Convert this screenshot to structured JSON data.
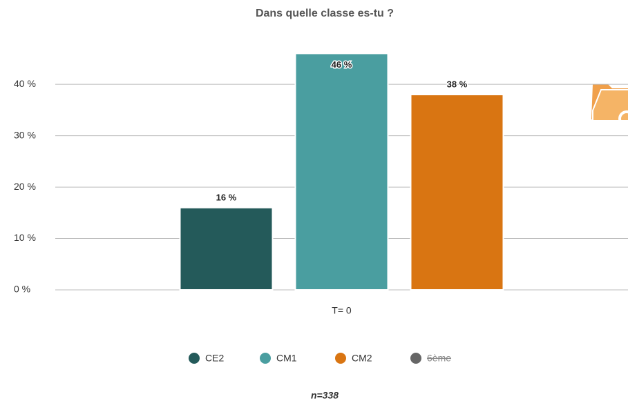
{
  "chart_data": {
    "type": "bar",
    "title": "Dans quelle classe es-tu ?",
    "categories": [
      "T= 0"
    ],
    "series": [
      {
        "name": "CE2",
        "color": "#245a5a",
        "values": [
          16
        ],
        "value_labels": [
          "16 %"
        ]
      },
      {
        "name": "CM1",
        "color": "#4a9ea0",
        "values": [
          46
        ],
        "value_labels": [
          "46 %"
        ]
      },
      {
        "name": "CM2",
        "color": "#d97512",
        "values": [
          38
        ],
        "value_labels": [
          "38 %"
        ]
      },
      {
        "name": "6ème",
        "color": "#666666",
        "values": [
          null
        ],
        "hidden": true
      }
    ],
    "ylim": [
      0,
      47
    ],
    "yticks": [
      {
        "value": 0,
        "label": "0 %"
      },
      {
        "value": 10,
        "label": "10 %"
      },
      {
        "value": 20,
        "label": "20 %"
      },
      {
        "value": 30,
        "label": "30 %"
      },
      {
        "value": 40,
        "label": "40 %"
      }
    ],
    "grid": true,
    "legend": "bottom",
    "footnote": "n=338"
  }
}
